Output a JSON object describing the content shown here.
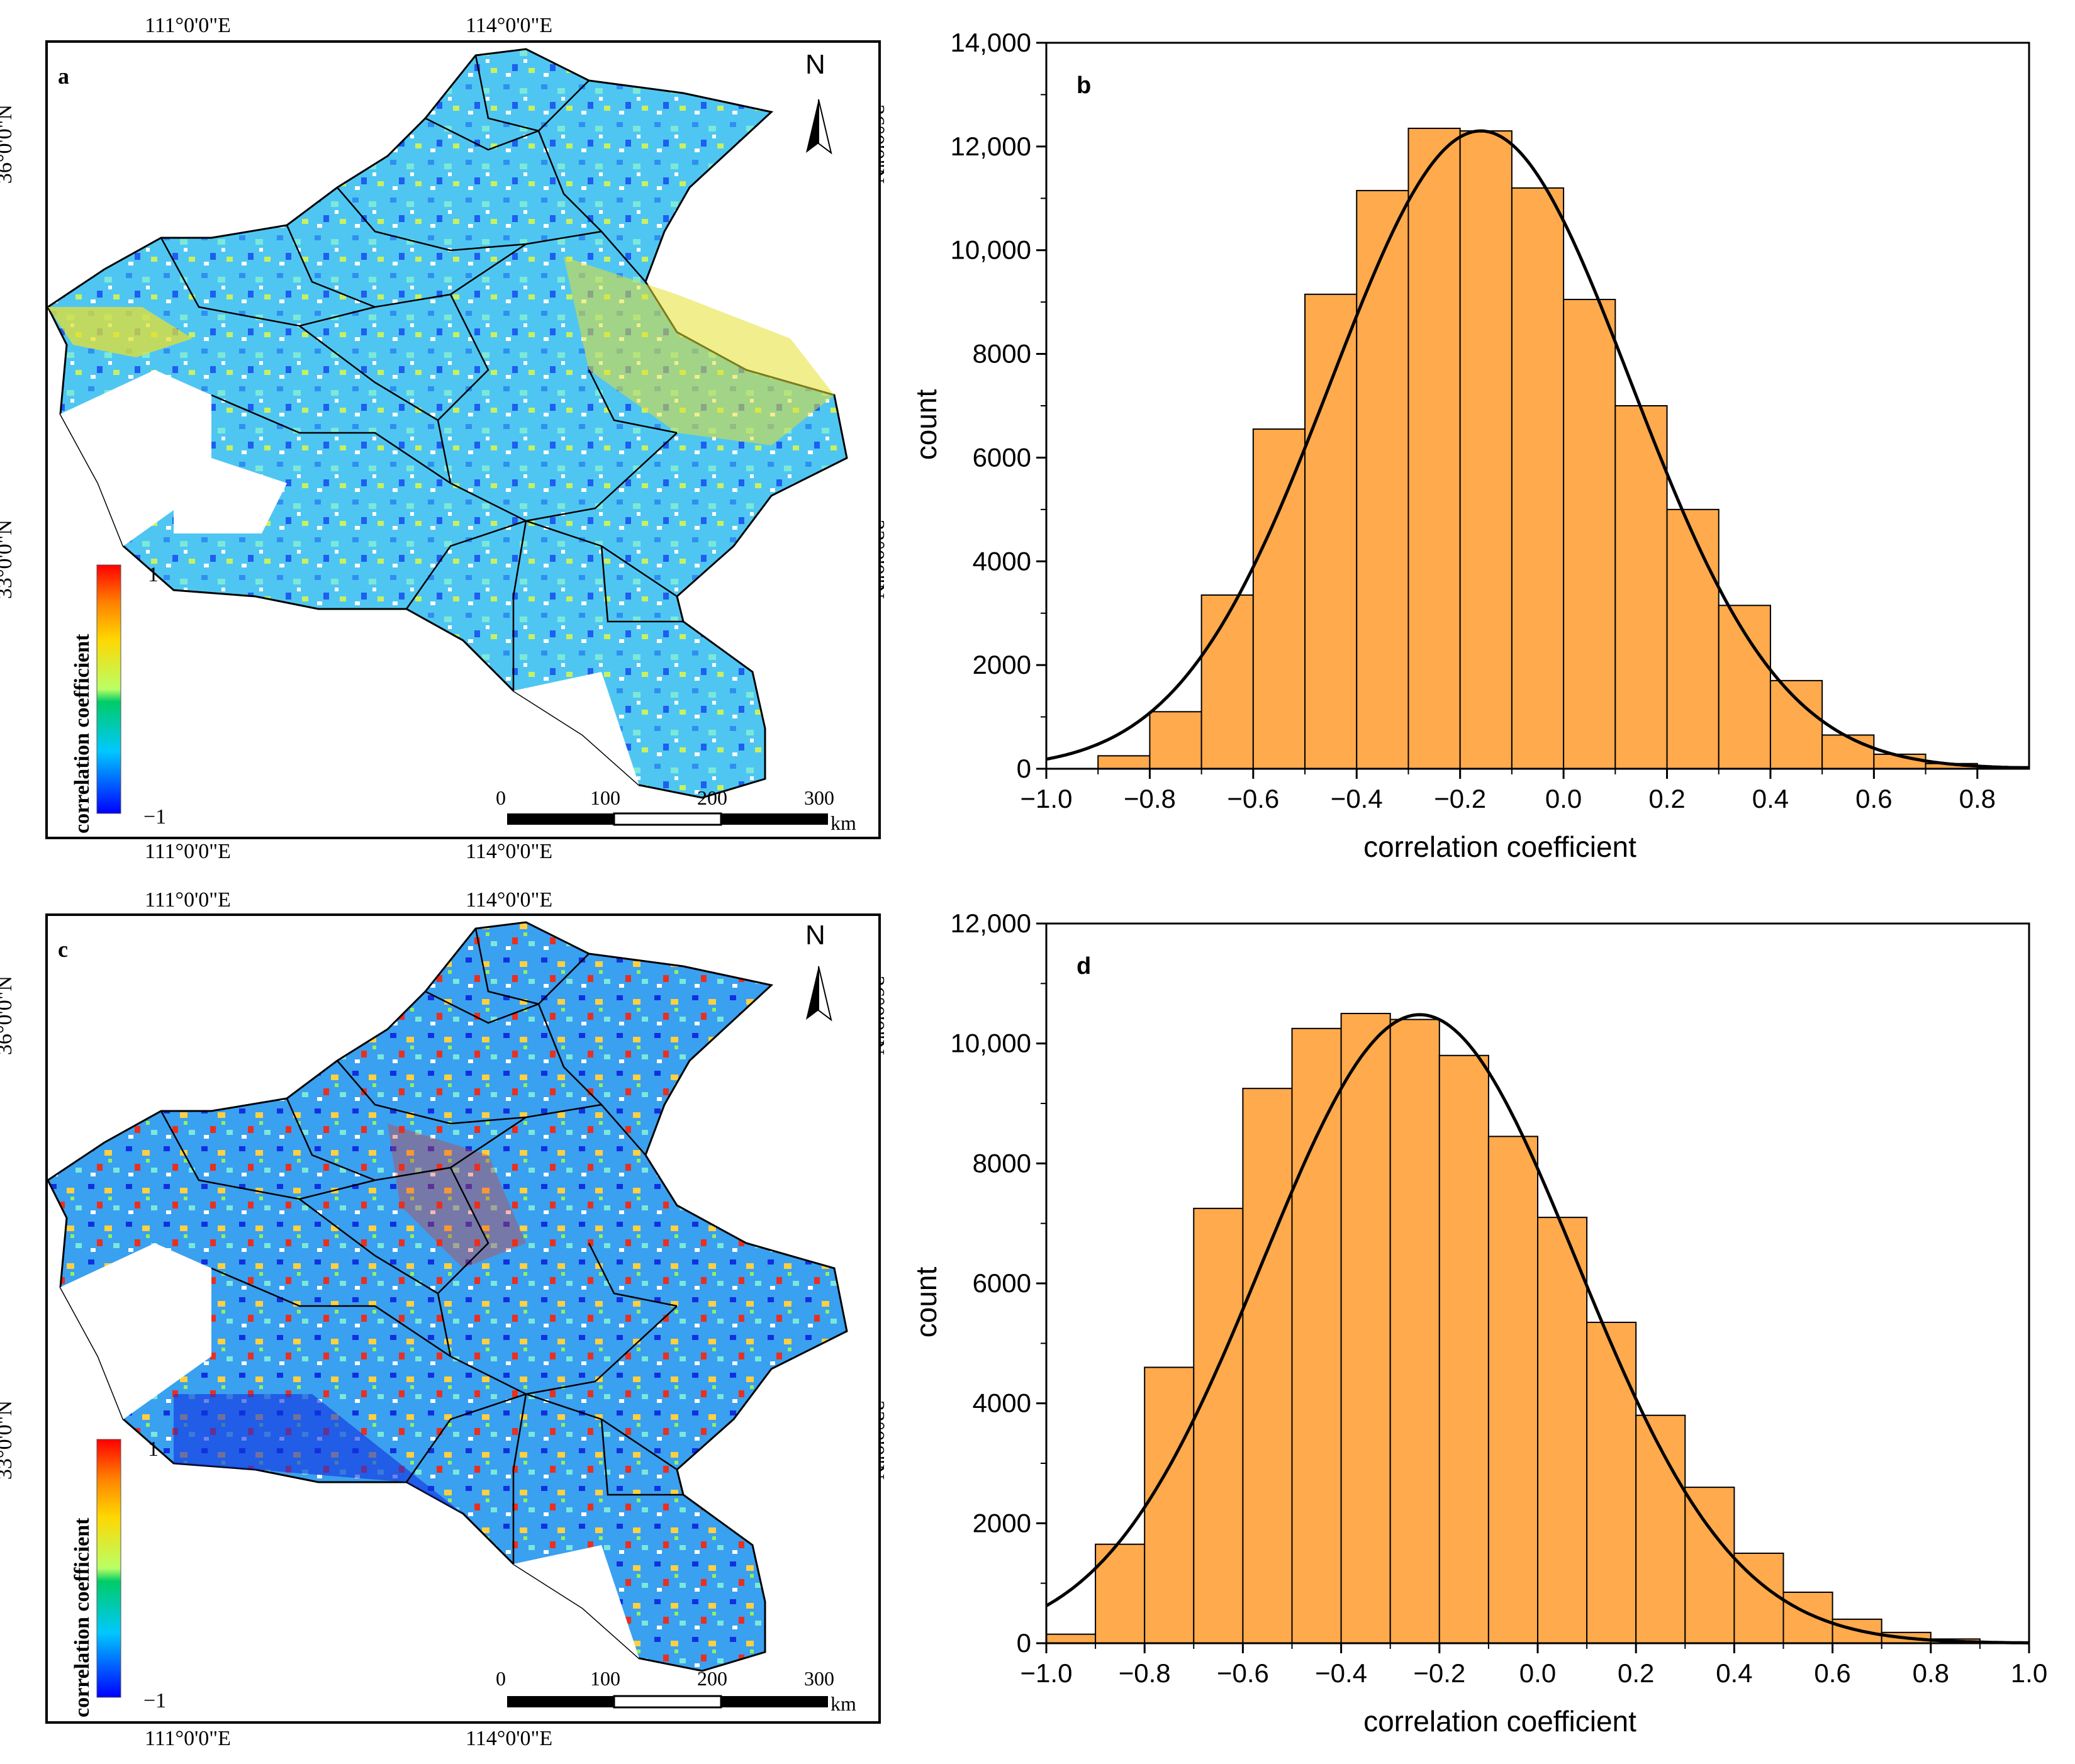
{
  "panels": {
    "a": {
      "letter": "a"
    },
    "b": {
      "letter": "b"
    },
    "c": {
      "letter": "c"
    },
    "d": {
      "letter": "d"
    }
  },
  "map": {
    "lon_left": "111°0'0\"E",
    "lon_right": "114°0'0\"E",
    "lat_top": "36°0'0\"N",
    "lat_bottom": "33°0'0\"N",
    "north": "N",
    "legend_title": "correlation coefficient",
    "legend_max": "1",
    "legend_min": "−1",
    "scale_ticks": [
      "0",
      "100",
      "200",
      "300"
    ],
    "scale_unit": "km",
    "colors": {
      "boundary": "#000000",
      "high": "#ff0000",
      "mid_high": "#ffd700",
      "mid": "#00cc66",
      "mid_low": "#00c8ff",
      "low": "#0000ff"
    }
  },
  "chart_data": [
    {
      "id": "b",
      "type": "bar",
      "bins": [
        -0.9,
        -0.8,
        -0.7,
        -0.6,
        -0.5,
        -0.4,
        -0.3,
        -0.2,
        -0.1,
        0.0,
        0.1,
        0.2,
        0.3,
        0.4,
        0.5,
        0.6,
        0.7,
        0.8
      ],
      "bin_width": 0.1,
      "values": [
        250,
        1100,
        3350,
        6550,
        9150,
        11150,
        12350,
        12300,
        11200,
        9050,
        7000,
        5000,
        3150,
        1700,
        650,
        280,
        100,
        40
      ],
      "fit": {
        "type": "normal",
        "mean": -0.16,
        "sd": 0.29,
        "peak": 12300
      },
      "title": "",
      "xlabel": "correlation coefficient",
      "ylabel": "count",
      "xlim": [
        -1.0,
        0.9
      ],
      "ylim": [
        0,
        14000
      ],
      "xticks": [
        -1.0,
        -0.8,
        -0.6,
        -0.4,
        -0.2,
        0.0,
        0.2,
        0.4,
        0.6,
        0.8
      ],
      "xtick_labels": [
        "−1.0",
        "−0.8",
        "−0.6",
        "−0.4",
        "−0.2",
        "0.0",
        "0.2",
        "0.4",
        "0.6",
        "0.8"
      ],
      "yticks": [
        0,
        2000,
        4000,
        6000,
        8000,
        10000,
        12000,
        14000
      ],
      "ytick_labels": [
        "0",
        "2000",
        "4000",
        "6000",
        "8000",
        "10,000",
        "12,000",
        "14,000"
      ],
      "bar_color": "#ffaa4c"
    },
    {
      "id": "d",
      "type": "bar",
      "bins": [
        -1.0,
        -0.9,
        -0.8,
        -0.7,
        -0.6,
        -0.5,
        -0.4,
        -0.3,
        -0.2,
        -0.1,
        0.0,
        0.1,
        0.2,
        0.3,
        0.4,
        0.5,
        0.6,
        0.7,
        0.8
      ],
      "bin_width": 0.1,
      "values": [
        150,
        1650,
        4600,
        7250,
        9250,
        10250,
        10500,
        10400,
        9800,
        8450,
        7100,
        5350,
        3800,
        2600,
        1500,
        850,
        400,
        180,
        70
      ],
      "fit": {
        "type": "normal",
        "mean": -0.24,
        "sd": 0.32,
        "peak": 10480
      },
      "title": "",
      "xlabel": "correlation coefficient",
      "ylabel": "count",
      "xlim": [
        -1.0,
        1.0
      ],
      "ylim": [
        0,
        12000
      ],
      "xticks": [
        -1.0,
        -0.8,
        -0.6,
        -0.4,
        -0.2,
        0.0,
        0.2,
        0.4,
        0.6,
        0.8,
        1.0
      ],
      "xtick_labels": [
        "−1.0",
        "−0.8",
        "−0.6",
        "−0.4",
        "−0.2",
        "0.0",
        "0.2",
        "0.4",
        "0.6",
        "0.8",
        "1.0"
      ],
      "yticks": [
        0,
        2000,
        4000,
        6000,
        8000,
        10000,
        12000
      ],
      "ytick_labels": [
        "0",
        "2000",
        "4000",
        "6000",
        "8000",
        "10,000",
        "12,000"
      ],
      "bar_color": "#ffaa4c"
    }
  ]
}
